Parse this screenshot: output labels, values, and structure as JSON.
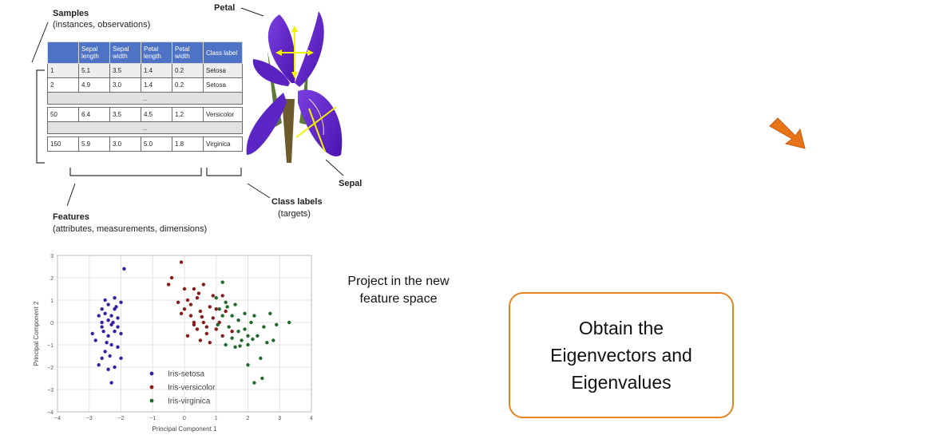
{
  "iris_figure": {
    "samples_title": "Samples",
    "samples_sub": "(instances, observations)",
    "petal_label": "Petal",
    "sepal_label": "Sepal",
    "features_title": "Features",
    "features_sub": "(attributes, measurements, dimensions)",
    "class_labels_title": "Class labels",
    "class_labels_sub": "(targets)",
    "table": {
      "headers": [
        "",
        "Sepal length",
        "Sepal width",
        "Petal length",
        "Petal width",
        "Class label"
      ],
      "rows": [
        [
          "1",
          "5.1",
          "3.5",
          "1.4",
          "0.2",
          "Setosa"
        ],
        [
          "2",
          "4.9",
          "3.0",
          "1.4",
          "0.2",
          "Setosa"
        ],
        [
          "50",
          "6.4",
          "3.5",
          "4.5",
          "1.2",
          "Versicolor"
        ],
        [
          "150",
          "5.9",
          "3.0",
          "5.0",
          "1.8",
          "Virginica"
        ]
      ],
      "ellipsis": "..."
    }
  },
  "chart_data": {
    "type": "scatter",
    "xlabel": "Principal Component 1",
    "ylabel": "Principal Component 2",
    "xlim": [
      -4,
      4
    ],
    "ylim": [
      -4,
      3
    ],
    "xticks": [
      "−4",
      "−3",
      "−2",
      "−1",
      "0",
      "1",
      "2",
      "3",
      "4"
    ],
    "yticks": [
      "3",
      "2",
      "1",
      "0",
      "−1",
      "−2",
      "−3",
      "−4"
    ],
    "grid": true,
    "legend": "lower-left",
    "series": [
      {
        "name": "Iris-setosa",
        "color": "#3b1f9c",
        "points": [
          [
            -2.7,
            0.3
          ],
          [
            -2.6,
            -0.2
          ],
          [
            -2.5,
            0.4
          ],
          [
            -2.4,
            0.8
          ],
          [
            -2.3,
            -0.1
          ],
          [
            -2.2,
            0.6
          ],
          [
            -2.1,
            0.2
          ],
          [
            -2.4,
            -0.6
          ],
          [
            -2.6,
            0.0
          ],
          [
            -2.2,
            -0.4
          ],
          [
            -2.8,
            -0.8
          ],
          [
            -2.5,
            -1.3
          ],
          [
            -2.3,
            -1.0
          ],
          [
            -2.0,
            -0.5
          ],
          [
            -2.1,
            -1.1
          ],
          [
            -2.4,
            -2.1
          ],
          [
            -2.6,
            -1.6
          ],
          [
            -2.2,
            -2.0
          ],
          [
            -2.3,
            -2.7
          ],
          [
            -2.9,
            -0.5
          ],
          [
            -2.5,
            1.0
          ],
          [
            -2.2,
            1.1
          ],
          [
            -2.0,
            0.9
          ],
          [
            -1.9,
            2.4
          ],
          [
            -2.7,
            -1.9
          ],
          [
            -2.4,
            0.1
          ],
          [
            -2.1,
            -0.2
          ],
          [
            -2.6,
            0.6
          ],
          [
            -2.3,
            0.3
          ],
          [
            -2.0,
            -1.6
          ],
          [
            -2.45,
            -0.9
          ],
          [
            -2.35,
            -1.5
          ],
          [
            -2.15,
            0.7
          ],
          [
            -2.55,
            -0.4
          ],
          [
            -2.25,
            0.0
          ]
        ]
      },
      {
        "name": "Iris-versicolor",
        "color": "#8b1a1a",
        "points": [
          [
            -0.1,
            2.7
          ],
          [
            -0.4,
            2.0
          ],
          [
            -0.5,
            1.7
          ],
          [
            0.0,
            1.5
          ],
          [
            0.3,
            1.5
          ],
          [
            0.4,
            1.1
          ],
          [
            0.1,
            1.0
          ],
          [
            -0.2,
            0.9
          ],
          [
            0.5,
            0.5
          ],
          [
            0.2,
            0.3
          ],
          [
            -0.1,
            0.4
          ],
          [
            0.3,
            -0.1
          ],
          [
            0.6,
            0.0
          ],
          [
            0.9,
            0.2
          ],
          [
            1.0,
            -0.3
          ],
          [
            0.7,
            -0.5
          ],
          [
            0.5,
            -0.8
          ],
          [
            0.8,
            -0.9
          ],
          [
            1.2,
            1.2
          ],
          [
            1.3,
            0.5
          ],
          [
            1.1,
            0.0
          ],
          [
            0.9,
            1.2
          ],
          [
            0.6,
            1.7
          ],
          [
            1.5,
            -0.4
          ],
          [
            0.4,
            -0.3
          ],
          [
            0.0,
            0.6
          ],
          [
            0.2,
            0.8
          ],
          [
            1.0,
            0.6
          ],
          [
            0.3,
            0.0
          ],
          [
            0.7,
            -0.2
          ],
          [
            0.8,
            0.7
          ],
          [
            1.2,
            -0.6
          ],
          [
            0.1,
            -0.6
          ],
          [
            0.55,
            0.25
          ],
          [
            0.45,
            1.3
          ]
        ]
      },
      {
        "name": "Iris-virginica",
        "color": "#1f6b2a",
        "points": [
          [
            1.1,
            0.6
          ],
          [
            1.3,
            0.9
          ],
          [
            1.5,
            0.3
          ],
          [
            1.7,
            0.1
          ],
          [
            1.9,
            -0.3
          ],
          [
            2.1,
            0.0
          ],
          [
            2.3,
            -0.6
          ],
          [
            2.5,
            -0.2
          ],
          [
            2.8,
            -0.8
          ],
          [
            3.3,
            0.0
          ],
          [
            2.7,
            0.4
          ],
          [
            1.8,
            -0.8
          ],
          [
            1.5,
            -0.7
          ],
          [
            1.3,
            -1.0
          ],
          [
            1.6,
            -1.1
          ],
          [
            2.0,
            -1.0
          ],
          [
            2.4,
            -1.6
          ],
          [
            2.2,
            -2.7
          ],
          [
            2.0,
            -1.9
          ],
          [
            1.2,
            0.3
          ],
          [
            1.4,
            -0.2
          ],
          [
            1.9,
            0.4
          ],
          [
            2.2,
            0.3
          ],
          [
            2.9,
            -0.1
          ],
          [
            1.7,
            -0.4
          ],
          [
            2.0,
            -0.6
          ],
          [
            1.0,
            1.1
          ],
          [
            1.2,
            1.8
          ],
          [
            1.35,
            0.7
          ],
          [
            2.45,
            -2.5
          ],
          [
            1.75,
            -1.05
          ],
          [
            2.15,
            -0.75
          ],
          [
            1.05,
            -0.1
          ],
          [
            2.6,
            -0.9
          ],
          [
            1.6,
            0.8
          ]
        ]
      }
    ]
  },
  "project_text": [
    "Project in the new",
    "feature space"
  ],
  "eigen_box": {
    "lines": [
      "Obtain the",
      "Eigenvectors and",
      "Eigenvalues"
    ],
    "border_color": "#e8841f"
  },
  "arrow": {
    "icon": "orange-arrow-down-right-icon",
    "color": "#e8741a"
  }
}
